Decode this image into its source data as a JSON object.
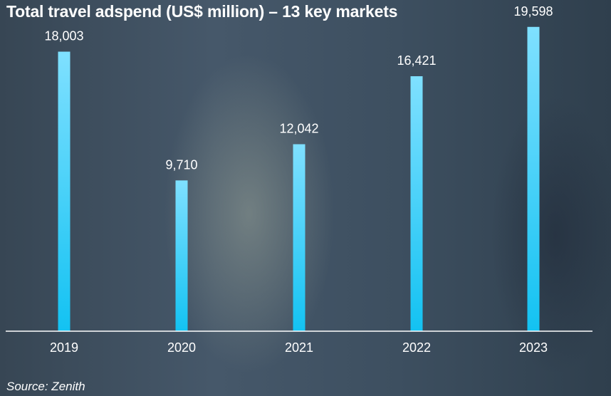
{
  "title": "Total travel adspend (US$ million) – 13 key markets",
  "source": "Source: Zenith",
  "colors": {
    "bar_top": "#7fe0ff",
    "bar_bottom": "#13c2f2",
    "axis": "#ffffff"
  },
  "chart_data": {
    "type": "bar",
    "title": "Total travel adspend (US$ million) – 13 key markets",
    "categories": [
      "2019",
      "2020",
      "2021",
      "2022",
      "2023"
    ],
    "values": [
      18003,
      9710,
      12042,
      16421,
      19598
    ],
    "value_labels": [
      "18,003",
      "9,710",
      "12,042",
      "16,421",
      "19,598"
    ],
    "ylim": [
      0,
      20000
    ],
    "grid": false,
    "legend": "none"
  }
}
